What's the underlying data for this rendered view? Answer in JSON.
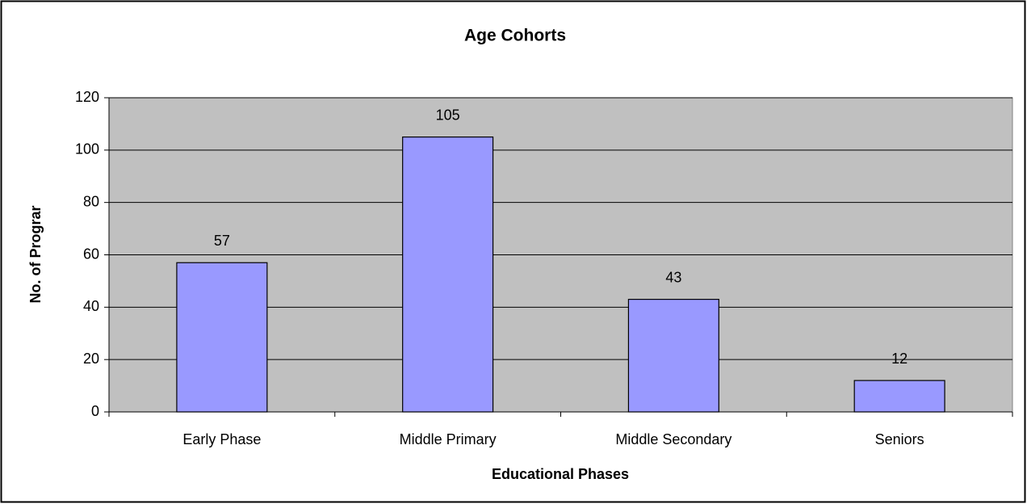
{
  "chart_data": {
    "type": "bar",
    "title": "Age Cohorts",
    "x_label": "Educational Phases",
    "y_label": "No. of Prograr",
    "categories": [
      "Early Phase",
      "Middle Primary",
      "Middle Secondary",
      "Seniors"
    ],
    "values": [
      57,
      105,
      43,
      12
    ],
    "color": "#9999ff",
    "ylim": [
      0,
      120
    ],
    "yticks": [
      0,
      20,
      40,
      60,
      80,
      100,
      120
    ],
    "grid": true
  }
}
